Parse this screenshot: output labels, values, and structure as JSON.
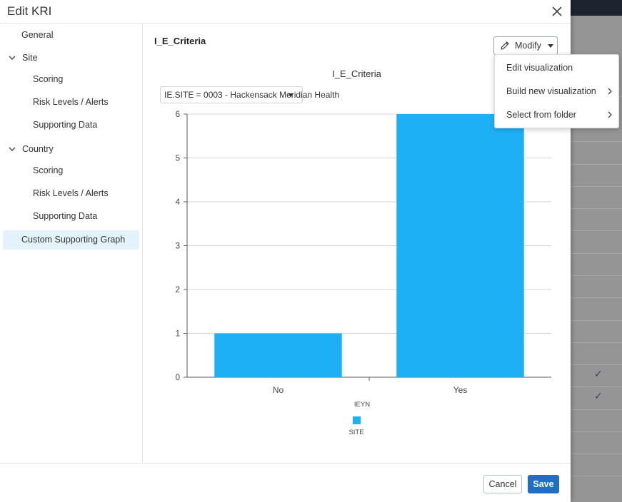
{
  "dialog": {
    "title": "Edit KRI"
  },
  "sidebar": {
    "general": "General",
    "site": {
      "label": "Site",
      "items": [
        "Scoring",
        "Risk Levels / Alerts",
        "Supporting Data"
      ]
    },
    "country": {
      "label": "Country",
      "items": [
        "Scoring",
        "Risk Levels / Alerts",
        "Supporting Data"
      ]
    },
    "custom": "Custom Supporting Graph"
  },
  "main": {
    "panel_title": "I_E_Criteria",
    "modify_label": "Modify",
    "site_filter": "IE.SITE = 0003 - Hackensack Meridian Health",
    "menu": {
      "items": [
        "Edit visualization",
        "Build new visualization",
        "Select from folder"
      ]
    }
  },
  "chart_data": {
    "type": "bar",
    "title": "I_E_Criteria",
    "categories": [
      "No",
      "Yes"
    ],
    "series": [
      {
        "name": "SITE",
        "values": [
          1,
          6
        ],
        "color": "#1eb0f5"
      }
    ],
    "xlabel": "IEYN",
    "ylabel": "",
    "ylim": [
      0,
      6
    ],
    "yticks": [
      "0",
      "1",
      "2",
      "3",
      "4",
      "5",
      "6"
    ],
    "grid": true,
    "legend": "bottom"
  },
  "footer": {
    "cancel_label": "Cancel",
    "save_label": "Save"
  },
  "colors": {
    "accent": "#1f6fc5",
    "bar": "#1eb0f5",
    "active_nav": "#e3f2fb"
  }
}
